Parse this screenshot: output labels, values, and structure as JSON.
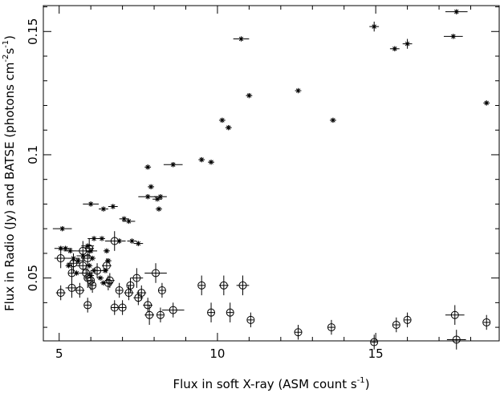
{
  "chart_data": {
    "type": "scatter",
    "title": "",
    "xlabel": "Flux in soft X-ray (ASM count s",
    "xlabel_sup": "-1",
    "xlabel_tail": ")",
    "ylabel_parts": [
      {
        "t": "Flux in Radio (Jy) and BATSE (photons cm",
        "sup": false
      },
      {
        "t": "-2",
        "sup": true
      },
      {
        "t": "s",
        "sup": false
      },
      {
        "t": "-1",
        "sup": true
      },
      {
        "t": ")",
        "sup": false
      }
    ],
    "xlim": [
      4.5,
      18.9
    ],
    "ylim": [
      0.0245,
      0.1605
    ],
    "x_ticks": [
      {
        "value": 5,
        "label": "5"
      },
      {
        "value": 10,
        "label": "10"
      },
      {
        "value": 15,
        "label": "15"
      }
    ],
    "y_ticks": [
      {
        "value": 0.05,
        "label": "0.05"
      },
      {
        "value": 0.1,
        "label": "0.1"
      },
      {
        "value": 0.15,
        "label": "0.15"
      }
    ],
    "x_minor_step": 1,
    "y_minor_step": 0.01,
    "grid": false,
    "series": [
      {
        "marker": "star",
        "points": [
          [
            5.1,
            0.07
          ],
          [
            5.05,
            0.062
          ],
          [
            5.2,
            0.062
          ],
          [
            5.35,
            0.061
          ],
          [
            5.45,
            0.058
          ],
          [
            5.3,
            0.055
          ],
          [
            5.6,
            0.057
          ],
          [
            5.75,
            0.059
          ],
          [
            5.9,
            0.063
          ],
          [
            6.0,
            0.061
          ],
          [
            6.05,
            0.058
          ],
          [
            5.95,
            0.055
          ],
          [
            6.1,
            0.053
          ],
          [
            6.0,
            0.051
          ],
          [
            5.55,
            0.052
          ],
          [
            6.0,
            0.08
          ],
          [
            6.1,
            0.066
          ],
          [
            6.35,
            0.066
          ],
          [
            6.5,
            0.061
          ],
          [
            6.55,
            0.057
          ],
          [
            6.45,
            0.053
          ],
          [
            6.3,
            0.05
          ],
          [
            6.4,
            0.048
          ],
          [
            6.4,
            0.078
          ],
          [
            6.7,
            0.079
          ],
          [
            6.9,
            0.065
          ],
          [
            7.05,
            0.074
          ],
          [
            7.2,
            0.073
          ],
          [
            7.3,
            0.065
          ],
          [
            7.5,
            0.064
          ],
          [
            7.8,
            0.083
          ],
          [
            7.8,
            0.095
          ],
          [
            7.9,
            0.087
          ],
          [
            8.1,
            0.082
          ],
          [
            8.15,
            0.078
          ],
          [
            8.2,
            0.083
          ],
          [
            8.6,
            0.096
          ],
          [
            9.5,
            0.098
          ],
          [
            9.8,
            0.097
          ],
          [
            10.15,
            0.114
          ],
          [
            10.35,
            0.111
          ],
          [
            10.75,
            0.147
          ],
          [
            11.0,
            0.124
          ],
          [
            12.55,
            0.126
          ],
          [
            13.65,
            0.114
          ],
          [
            14.95,
            0.152
          ],
          [
            15.6,
            0.143
          ],
          [
            16.0,
            0.145
          ],
          [
            17.45,
            0.148
          ],
          [
            17.55,
            0.158
          ],
          [
            18.5,
            0.121
          ]
        ],
        "xerr": [
          0.3,
          0.2,
          0.2,
          0.2,
          0.2,
          0.1,
          0.2,
          0.2,
          0.2,
          0.2,
          0.1,
          0.1,
          0.1,
          0.1,
          0.1,
          0.25,
          0.2,
          0.1,
          0.1,
          0.1,
          0.1,
          0.1,
          0.1,
          0.15,
          0.15,
          0.2,
          0.15,
          0.2,
          0.15,
          0.15,
          0.3,
          0.1,
          0.1,
          0.15,
          0.1,
          0.2,
          0.3,
          0.1,
          0.1,
          0.1,
          0.1,
          0.25,
          0.1,
          0.1,
          0.1,
          0.15,
          0.15,
          0.15,
          0.3,
          0.35,
          0.1
        ],
        "yerr": [
          0.001,
          0.001,
          0.001,
          0.001,
          0.001,
          0.001,
          0.001,
          0.001,
          0.001,
          0.001,
          0.001,
          0.001,
          0.001,
          0.001,
          0.001,
          0.001,
          0.001,
          0.001,
          0.001,
          0.001,
          0.001,
          0.001,
          0.001,
          0.001,
          0.001,
          0.001,
          0.001,
          0.001,
          0.001,
          0.001,
          0.001,
          0.001,
          0.001,
          0.001,
          0.001,
          0.001,
          0.001,
          0.001,
          0.001,
          0.001,
          0.001,
          0.001,
          0.001,
          0.001,
          0.001,
          0.002,
          0.001,
          0.002,
          0.001,
          0.001,
          0.001
        ]
      },
      {
        "marker": "circle",
        "points": [
          [
            5.05,
            0.058
          ],
          [
            5.05,
            0.044
          ],
          [
            5.4,
            0.046
          ],
          [
            5.4,
            0.052
          ],
          [
            5.45,
            0.056
          ],
          [
            5.65,
            0.045
          ],
          [
            5.75,
            0.061
          ],
          [
            5.75,
            0.055
          ],
          [
            5.85,
            0.052
          ],
          [
            5.9,
            0.058
          ],
          [
            5.95,
            0.062
          ],
          [
            5.9,
            0.05
          ],
          [
            6.0,
            0.049
          ],
          [
            6.05,
            0.047
          ],
          [
            5.9,
            0.039
          ],
          [
            6.2,
            0.053
          ],
          [
            6.5,
            0.055
          ],
          [
            6.55,
            0.048
          ],
          [
            6.6,
            0.049
          ],
          [
            6.75,
            0.065
          ],
          [
            6.75,
            0.038
          ],
          [
            6.9,
            0.045
          ],
          [
            7.0,
            0.038
          ],
          [
            7.2,
            0.044
          ],
          [
            7.25,
            0.047
          ],
          [
            7.45,
            0.05
          ],
          [
            7.5,
            0.042
          ],
          [
            7.6,
            0.044
          ],
          [
            7.8,
            0.039
          ],
          [
            7.85,
            0.035
          ],
          [
            8.05,
            0.052
          ],
          [
            8.2,
            0.035
          ],
          [
            8.25,
            0.045
          ],
          [
            8.6,
            0.037
          ],
          [
            9.5,
            0.047
          ],
          [
            9.8,
            0.036
          ],
          [
            10.2,
            0.047
          ],
          [
            10.4,
            0.036
          ],
          [
            10.8,
            0.047
          ],
          [
            11.05,
            0.033
          ],
          [
            12.55,
            0.028
          ],
          [
            13.6,
            0.03
          ],
          [
            14.95,
            0.024
          ],
          [
            15.65,
            0.031
          ],
          [
            16.0,
            0.033
          ],
          [
            17.5,
            0.035
          ],
          [
            17.55,
            0.025
          ],
          [
            18.5,
            0.032
          ]
        ],
        "xerr": [
          0.2,
          0.15,
          0.2,
          0.1,
          0.2,
          0.15,
          0.2,
          0.2,
          0.2,
          0.2,
          0.15,
          0.1,
          0.1,
          0.1,
          0.1,
          0.2,
          0.15,
          0.15,
          0.15,
          0.3,
          0.1,
          0.1,
          0.1,
          0.15,
          0.1,
          0.2,
          0.15,
          0.15,
          0.15,
          0.15,
          0.35,
          0.1,
          0.1,
          0.35,
          0.1,
          0.1,
          0.15,
          0.1,
          0.2,
          0.1,
          0.1,
          0.1,
          0.1,
          0.1,
          0.1,
          0.3,
          0.3,
          0.1
        ],
        "yerr": [
          0.004,
          0.003,
          0.004,
          0.004,
          0.004,
          0.003,
          0.004,
          0.003,
          0.003,
          0.003,
          0.004,
          0.004,
          0.004,
          0.003,
          0.003,
          0.003,
          0.003,
          0.003,
          0.003,
          0.004,
          0.003,
          0.003,
          0.003,
          0.003,
          0.003,
          0.004,
          0.003,
          0.003,
          0.003,
          0.004,
          0.004,
          0.003,
          0.003,
          0.003,
          0.004,
          0.004,
          0.004,
          0.004,
          0.004,
          0.003,
          0.003,
          0.003,
          0.003,
          0.003,
          0.003,
          0.004,
          0.004,
          0.003
        ]
      }
    ]
  }
}
